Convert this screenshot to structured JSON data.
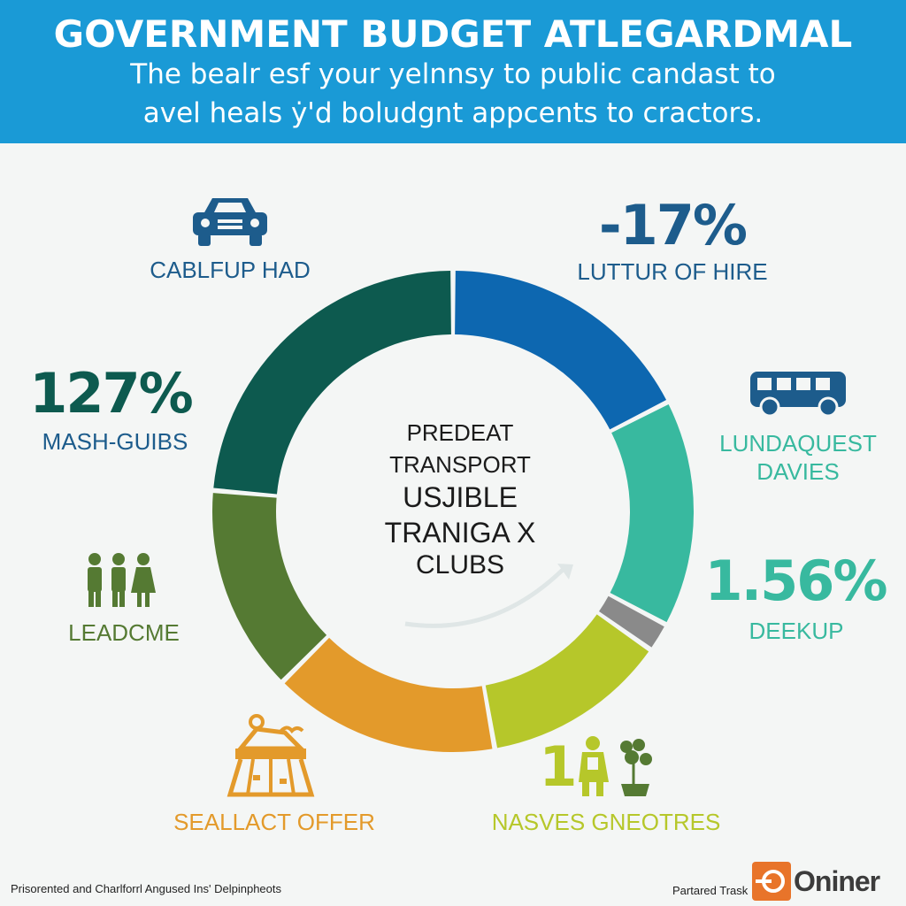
{
  "header": {
    "title": "GOVERNMENT BUDGET ATLEGARDMAL",
    "subtitle_line1": "The bealr esf your yelnnsy to public candast to",
    "subtitle_line2": "avel heals ẏ'd boludgnt appcents to cractors."
  },
  "chart_data": {
    "type": "pie",
    "style": "donut",
    "center_label": [
      "PREDEAT",
      "TRANSPORT",
      "USJIBLE",
      "TRANIGA X",
      "CLUBS"
    ],
    "segments": [
      {
        "color": "#0d67b0",
        "sweep_deg": 63
      },
      {
        "color": "#38b99f",
        "sweep_deg": 55
      },
      {
        "color": "#8a8a8a",
        "sweep_deg": 7
      },
      {
        "color": "#b6c72a",
        "sweep_deg": 45
      },
      {
        "color": "#e39a2b",
        "sweep_deg": 55
      },
      {
        "color": "#557a33",
        "sweep_deg": 50
      },
      {
        "color": "#0d5a4f",
        "sweep_deg": 85
      }
    ]
  },
  "callouts": {
    "top_left_label": "CABLFUP HAD",
    "top_right_percent": "-17%",
    "top_right_label": "LUTTUR OF HIRE",
    "left_percent": "127%",
    "left_label": "MASH-GUIBS",
    "right_label_line1": "LUNDAQUEST",
    "right_label_line2": "DAVIES",
    "right_percent": "1.56%",
    "right_lower_label": "DEEKUP",
    "lower_left_label": "LEADCME",
    "bottom_left_label": "SEALLACT OFFER",
    "bottom_right_number": "1",
    "bottom_right_label": "NASVES GNEOTRES"
  },
  "icons": {
    "car": "car-icon",
    "bus": "bus-icon",
    "people": "people-icon",
    "market": "market-stall-icon",
    "gardener": "gardener-plant-icon"
  },
  "colors": {
    "header_bg": "#1a9ad6",
    "dark_blue": "#1d5c8c",
    "dark_green": "#0d5a4f",
    "teal": "#38b99f",
    "olive": "#557a33",
    "orange": "#e39a2b",
    "lime": "#b6c72a"
  },
  "footer": {
    "left_text": "Prisorented and Charlforrl Angused Ins' Delpinpheots",
    "right_text": "Partared Trask",
    "logo_text": "Oniner"
  }
}
